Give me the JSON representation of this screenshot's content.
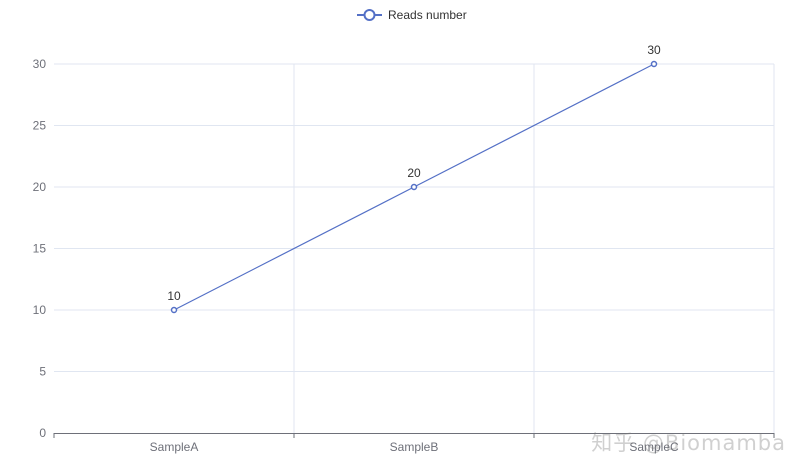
{
  "chart_data": {
    "type": "line",
    "categories": [
      "SampleA",
      "SampleB",
      "SampleC"
    ],
    "series": [
      {
        "name": "Reads number",
        "values": [
          10,
          20,
          30
        ]
      }
    ],
    "ylim": [
      0,
      30
    ],
    "yticks": [
      0,
      5,
      10,
      15,
      20,
      25,
      30
    ],
    "grid": true,
    "legend_position": "top-center",
    "show_data_labels": true
  },
  "colors": {
    "series_line": "#5470c6",
    "grid": "#e0e6f1",
    "axis": "#6e7079"
  },
  "watermark": {
    "text": "知乎 @Biomamba"
  }
}
